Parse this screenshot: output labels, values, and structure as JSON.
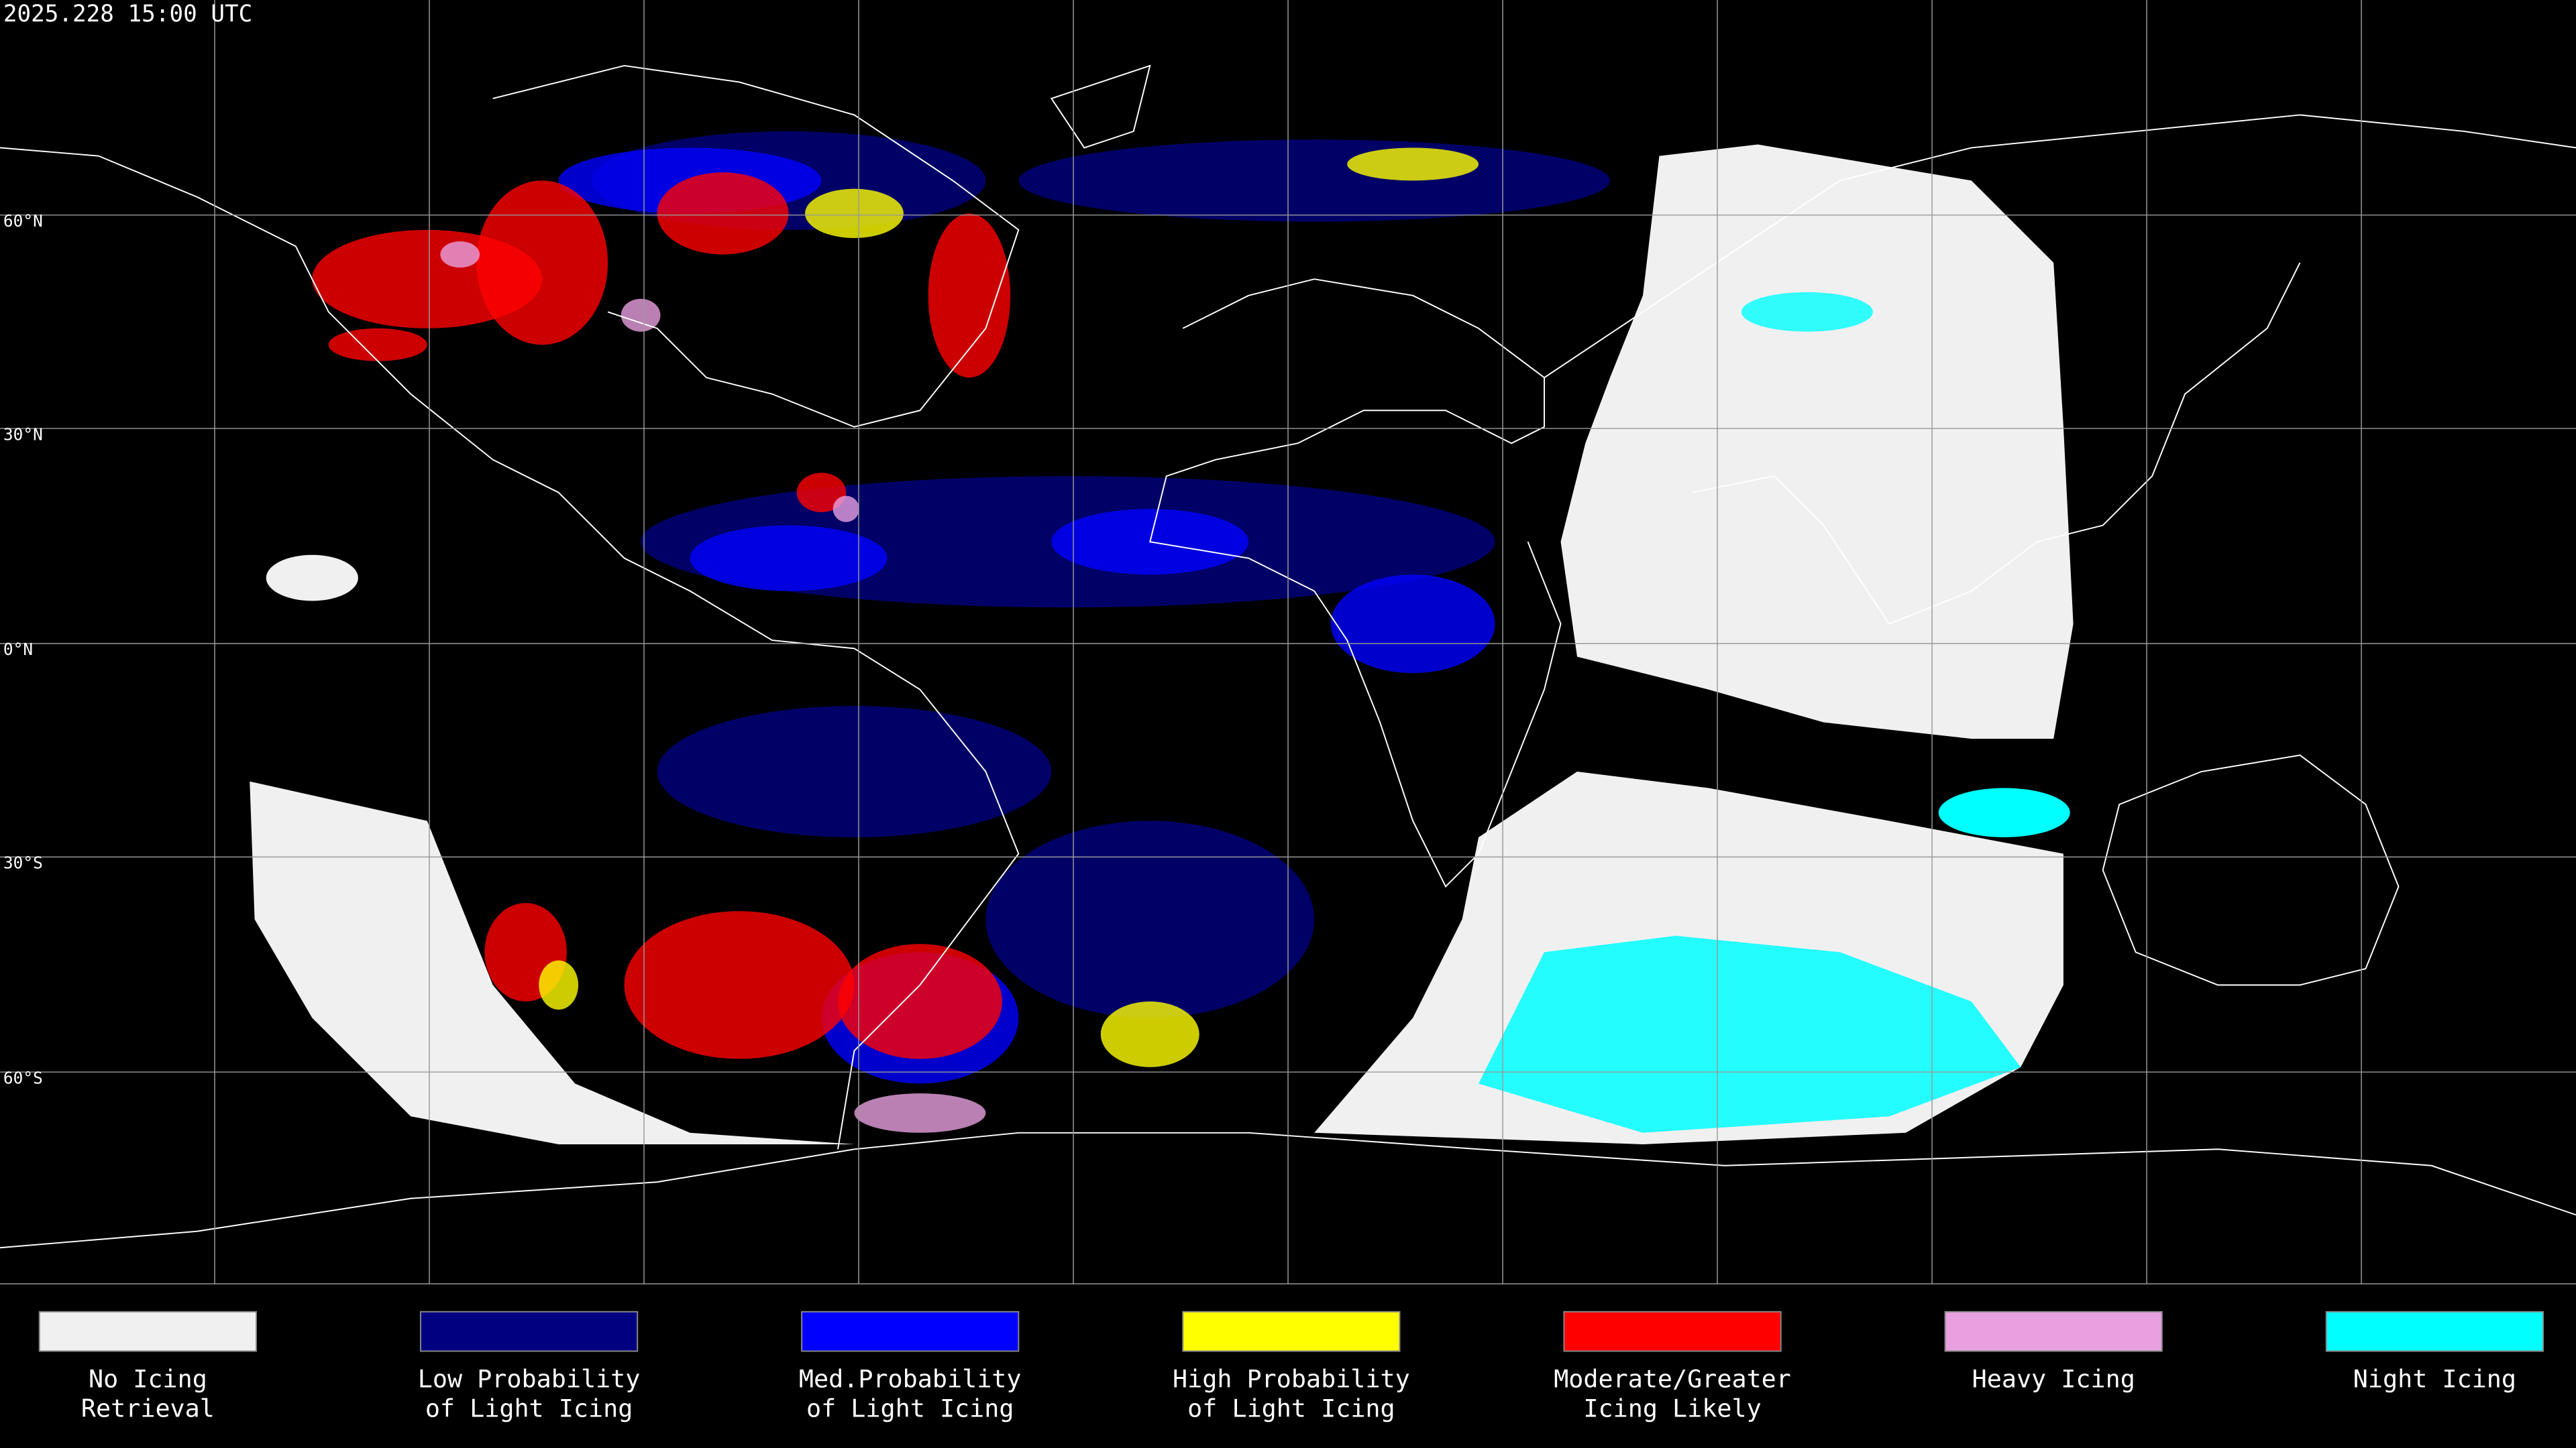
{
  "header": {
    "title": "2025.228 15:00 UTC"
  },
  "latitude_labels": [
    "60°N",
    "30°N",
    "0°N",
    "30°S",
    "60°S"
  ],
  "legend": [
    {
      "lines": [
        "No Icing",
        "Retrieval"
      ],
      "color": "#f0f0f0"
    },
    {
      "lines": [
        "Low Probability",
        "of Light Icing"
      ],
      "color": "#000080"
    },
    {
      "lines": [
        "Med.Probability",
        "of Light Icing"
      ],
      "color": "#0000ff"
    },
    {
      "lines": [
        "High Probability",
        "of Light Icing"
      ],
      "color": "#ffff00"
    },
    {
      "lines": [
        "Moderate/Greater",
        "Icing Likely"
      ],
      "color": "#ff0000"
    },
    {
      "lines": [
        "Heavy Icing"
      ],
      "color": "#e8a0e0"
    },
    {
      "lines": [
        "Night Icing"
      ],
      "color": "#00ffff"
    }
  ]
}
